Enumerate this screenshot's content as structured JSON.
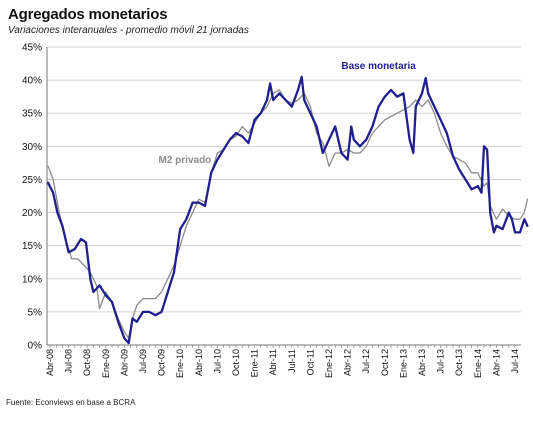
{
  "title": "Agregados monetarios",
  "subtitle": "Variaciones interanuales  - promedio móvil 21 jornadas",
  "source": "Fuente: Econviews en base a BCRA",
  "chart_data": {
    "type": "line",
    "y_ticks": [
      "0%",
      "5%",
      "10%",
      "15%",
      "20%",
      "25%",
      "30%",
      "35%",
      "40%",
      "45%"
    ],
    "ylim": [
      0,
      45
    ],
    "xlim": [
      0,
      75
    ],
    "x_ticks": [
      {
        "m": 0,
        "label": "Abr-08"
      },
      {
        "m": 3,
        "label": "Jul-08"
      },
      {
        "m": 6,
        "label": "Oct-08"
      },
      {
        "m": 9,
        "label": "Ene-09"
      },
      {
        "m": 12,
        "label": "Abr-09"
      },
      {
        "m": 15,
        "label": "Jul-09"
      },
      {
        "m": 18,
        "label": "Oct-09"
      },
      {
        "m": 21,
        "label": "Ene-10"
      },
      {
        "m": 24,
        "label": "Abr-10"
      },
      {
        "m": 27,
        "label": "Jul-10"
      },
      {
        "m": 30,
        "label": "Oct-10"
      },
      {
        "m": 33,
        "label": "Ene-11"
      },
      {
        "m": 36,
        "label": "Abr-11"
      },
      {
        "m": 39,
        "label": "Jul-11"
      },
      {
        "m": 42,
        "label": "Oct-11"
      },
      {
        "m": 45,
        "label": "Ene-12"
      },
      {
        "m": 48,
        "label": "Abr-12"
      },
      {
        "m": 51,
        "label": "Jul-12"
      },
      {
        "m": 54,
        "label": "Oct-12"
      },
      {
        "m": 57,
        "label": "Ene-13"
      },
      {
        "m": 60,
        "label": "Abr-13"
      },
      {
        "m": 63,
        "label": "Jul-13"
      },
      {
        "m": 66,
        "label": "Oct-13"
      },
      {
        "m": 69,
        "label": "Ene-14"
      },
      {
        "m": 72,
        "label": "Abr-14"
      },
      {
        "m": 75,
        "label": "Jul-14"
      }
    ],
    "grid": "horizontal",
    "series": [
      {
        "name": "Base monetaria",
        "color": "#1f1f8f",
        "points": [
          [
            -0.3,
            24.5
          ],
          [
            0.5,
            23
          ],
          [
            1.2,
            20
          ],
          [
            2,
            18
          ],
          [
            3,
            14
          ],
          [
            4,
            14.5
          ],
          [
            5,
            16
          ],
          [
            5.8,
            15.5
          ],
          [
            6.5,
            10
          ],
          [
            7,
            8
          ],
          [
            8,
            9
          ],
          [
            9,
            7.5
          ],
          [
            10,
            6.5
          ],
          [
            11,
            3.5
          ],
          [
            12,
            1
          ],
          [
            12.7,
            0.3
          ],
          [
            13.3,
            4
          ],
          [
            14,
            3.5
          ],
          [
            15,
            5
          ],
          [
            16,
            5
          ],
          [
            17,
            4.5
          ],
          [
            18,
            5
          ],
          [
            19,
            8
          ],
          [
            20,
            11
          ],
          [
            21,
            17.5
          ],
          [
            22,
            19
          ],
          [
            23,
            21.5
          ],
          [
            24,
            21.5
          ],
          [
            25,
            21
          ],
          [
            26,
            26
          ],
          [
            27,
            28
          ],
          [
            28,
            29.5
          ],
          [
            29,
            31
          ],
          [
            30,
            32
          ],
          [
            31,
            31.5
          ],
          [
            32,
            30.5
          ],
          [
            33,
            34
          ],
          [
            34,
            35
          ],
          [
            35,
            37
          ],
          [
            35.5,
            39.5
          ],
          [
            36,
            37
          ],
          [
            37,
            38
          ],
          [
            38,
            37
          ],
          [
            39,
            36
          ],
          [
            40,
            38.5
          ],
          [
            40.6,
            40.5
          ],
          [
            41,
            37
          ],
          [
            42,
            35
          ],
          [
            43,
            33
          ],
          [
            44,
            29
          ],
          [
            45,
            31
          ],
          [
            46,
            33
          ],
          [
            47,
            29
          ],
          [
            48,
            28
          ],
          [
            48.6,
            33
          ],
          [
            49,
            31
          ],
          [
            50,
            30
          ],
          [
            51,
            31
          ],
          [
            52,
            33
          ],
          [
            53,
            36
          ],
          [
            54,
            37.5
          ],
          [
            55,
            38.5
          ],
          [
            56,
            37.5
          ],
          [
            57,
            38
          ],
          [
            58,
            31
          ],
          [
            58.6,
            29
          ],
          [
            59,
            36
          ],
          [
            60,
            38
          ],
          [
            60.6,
            40.3
          ],
          [
            61,
            38
          ],
          [
            62,
            36
          ],
          [
            63,
            34
          ],
          [
            64,
            32
          ],
          [
            65,
            28.5
          ],
          [
            66,
            26.5
          ],
          [
            67,
            25
          ],
          [
            68,
            23.5
          ],
          [
            69,
            24
          ],
          [
            69.6,
            23
          ],
          [
            70,
            30
          ],
          [
            70.5,
            29.5
          ],
          [
            71,
            20
          ],
          [
            71.6,
            17
          ],
          [
            72,
            18
          ],
          [
            73,
            17.5
          ],
          [
            74,
            20
          ],
          [
            74.5,
            19
          ],
          [
            75,
            17
          ],
          [
            75.8,
            17
          ],
          [
            76.5,
            19
          ],
          [
            77,
            18
          ]
        ]
      },
      {
        "name": "M2 privado",
        "color": "#8c8c8c",
        "points": [
          [
            -0.3,
            27
          ],
          [
            0.5,
            25
          ],
          [
            1.5,
            20
          ],
          [
            2.5,
            16
          ],
          [
            3.5,
            13
          ],
          [
            4.5,
            13
          ],
          [
            5.5,
            12
          ],
          [
            6.5,
            11
          ],
          [
            7.5,
            9
          ],
          [
            8,
            5.5
          ],
          [
            9,
            8
          ],
          [
            10,
            6.5
          ],
          [
            11,
            4
          ],
          [
            12,
            2
          ],
          [
            12.7,
            1
          ],
          [
            13.3,
            4
          ],
          [
            14,
            6
          ],
          [
            15,
            7
          ],
          [
            16,
            7
          ],
          [
            17,
            7
          ],
          [
            18,
            8
          ],
          [
            19,
            10
          ],
          [
            20,
            12
          ],
          [
            21,
            15
          ],
          [
            22,
            18
          ],
          [
            23,
            20
          ],
          [
            24,
            22
          ],
          [
            25,
            21.5
          ],
          [
            26,
            26
          ],
          [
            27,
            29
          ],
          [
            28,
            29.5
          ],
          [
            29,
            31
          ],
          [
            30,
            31.5
          ],
          [
            31,
            33
          ],
          [
            32,
            32
          ],
          [
            33,
            33.5
          ],
          [
            34,
            35
          ],
          [
            35,
            36
          ],
          [
            36,
            38
          ],
          [
            37,
            38.5
          ],
          [
            38,
            37
          ],
          [
            39,
            36.5
          ],
          [
            40,
            37
          ],
          [
            41,
            38
          ],
          [
            42,
            36
          ],
          [
            43,
            32
          ],
          [
            44,
            30.5
          ],
          [
            45,
            27
          ],
          [
            46,
            29
          ],
          [
            47,
            29
          ],
          [
            48,
            29.5
          ],
          [
            49,
            29
          ],
          [
            50,
            29
          ],
          [
            51,
            30
          ],
          [
            52,
            32
          ],
          [
            53,
            33
          ],
          [
            54,
            34
          ],
          [
            55,
            34.5
          ],
          [
            56,
            35
          ],
          [
            57,
            35.5
          ],
          [
            58,
            36
          ],
          [
            59,
            37
          ],
          [
            60,
            36
          ],
          [
            61,
            37
          ],
          [
            62,
            35
          ],
          [
            63,
            32
          ],
          [
            64,
            30
          ],
          [
            65,
            28.5
          ],
          [
            66,
            28
          ],
          [
            67,
            27.5
          ],
          [
            68,
            26
          ],
          [
            69,
            26
          ],
          [
            70,
            24
          ],
          [
            70.5,
            24.5
          ],
          [
            71,
            21
          ],
          [
            72,
            19
          ],
          [
            73,
            20.5
          ],
          [
            74,
            19.5
          ],
          [
            75,
            19
          ],
          [
            75.8,
            19
          ],
          [
            76.5,
            20
          ],
          [
            77,
            22
          ]
        ]
      }
    ],
    "labels": [
      {
        "text": "Base monetaria",
        "series": 0,
        "at": [
          47,
          41.7
        ]
      },
      {
        "text": "M2 privado",
        "series": 1,
        "at": [
          17.5,
          27.5
        ]
      }
    ]
  }
}
